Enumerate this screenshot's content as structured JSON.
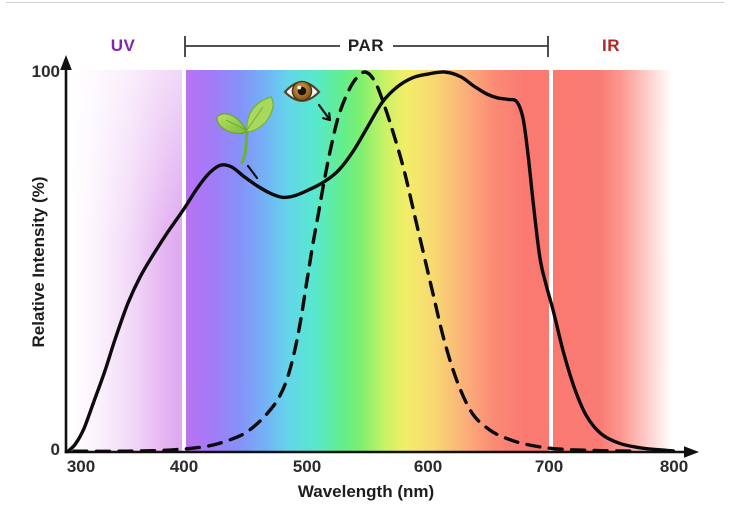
{
  "regions": {
    "uv": "UV",
    "par": "PAR",
    "ir": "IR"
  },
  "y_axis": {
    "title": "Relative Intensity (%)",
    "max": "100",
    "min": "0"
  },
  "x_axis": {
    "title": "Wavelength (nm)",
    "ticks": [
      "300",
      "400",
      "500",
      "600",
      "700",
      "800"
    ]
  },
  "chart_data": {
    "type": "line",
    "title": "",
    "xlabel": "Wavelength (nm)",
    "ylabel": "Relative Intensity (%)",
    "xlim": [
      300,
      800
    ],
    "ylim": [
      0,
      100
    ],
    "x_ticks": [
      300,
      400,
      500,
      600,
      700,
      800
    ],
    "y_ticks": [
      0,
      100
    ],
    "grid": false,
    "legend": "none (icons annotate curves: seedling = solid curve, eye = dashed curve)",
    "background": "visible-light spectrum gradient from UV (white/violet) through rainbow to IR (red/white)",
    "band_boundaries_nm": [
      400,
      700
    ],
    "regions": [
      {
        "label": "UV",
        "range_nm": [
          300,
          400
        ],
        "label_color": "#8326ad"
      },
      {
        "label": "PAR",
        "range_nm": [
          400,
          700
        ],
        "label_color": "#1f1f1f"
      },
      {
        "label": "IR",
        "range_nm": [
          700,
          800
        ],
        "label_color": "#b32424"
      }
    ],
    "series": [
      {
        "name": "plant-photosynthetic-response",
        "annotation_icon": "seedling",
        "line_style": "solid",
        "color": "#0b0b0b",
        "points": [
          [
            305,
            0
          ],
          [
            311,
            2
          ],
          [
            318,
            6
          ],
          [
            326,
            13
          ],
          [
            335,
            21
          ],
          [
            344,
            30
          ],
          [
            354,
            39
          ],
          [
            364,
            46
          ],
          [
            375,
            52
          ],
          [
            387,
            58
          ],
          [
            400,
            64
          ],
          [
            411,
            69.5
          ],
          [
            421,
            73.5
          ],
          [
            430,
            75.5
          ],
          [
            439,
            75
          ],
          [
            449,
            72.5
          ],
          [
            460,
            70
          ],
          [
            471,
            68
          ],
          [
            481,
            67
          ],
          [
            491,
            67.5
          ],
          [
            502,
            69
          ],
          [
            514,
            71
          ],
          [
            526,
            74
          ],
          [
            538,
            79
          ],
          [
            550,
            85.5
          ],
          [
            562,
            92
          ],
          [
            574,
            96
          ],
          [
            587,
            98.5
          ],
          [
            600,
            99.5
          ],
          [
            613,
            100
          ],
          [
            626,
            98.8
          ],
          [
            637,
            96.3
          ],
          [
            647,
            94.3
          ],
          [
            656,
            93.2
          ],
          [
            665,
            92.8
          ],
          [
            672,
            92.2
          ],
          [
            677,
            88
          ],
          [
            681,
            79
          ],
          [
            686,
            64
          ],
          [
            691,
            51
          ],
          [
            696,
            44
          ],
          [
            702,
            37
          ],
          [
            710,
            26.5
          ],
          [
            719,
            17
          ],
          [
            729,
            9.5
          ],
          [
            741,
            4.8
          ],
          [
            756,
            2.3
          ],
          [
            775,
            1
          ],
          [
            800,
            0.3
          ]
        ]
      },
      {
        "name": "human-eye-sensitivity",
        "annotation_icon": "eye",
        "line_style": "dashed",
        "color": "#0b0b0b",
        "points": [
          [
            310,
            0.2
          ],
          [
            350,
            0.2
          ],
          [
            380,
            0.4
          ],
          [
            400,
            0.8
          ],
          [
            415,
            1.3
          ],
          [
            428,
            2.2
          ],
          [
            440,
            3.5
          ],
          [
            450,
            5
          ],
          [
            460,
            7.5
          ],
          [
            469,
            10.5
          ],
          [
            477,
            14
          ],
          [
            484,
            19
          ],
          [
            490,
            26
          ],
          [
            495,
            34
          ],
          [
            500,
            44
          ],
          [
            505,
            54
          ],
          [
            510,
            63
          ],
          [
            515,
            72
          ],
          [
            520,
            80
          ],
          [
            526,
            88
          ],
          [
            533,
            94
          ],
          [
            540,
            98
          ],
          [
            548,
            100
          ],
          [
            556,
            97.5
          ],
          [
            564,
            91
          ],
          [
            572,
            83
          ],
          [
            580,
            74
          ],
          [
            588,
            63
          ],
          [
            596,
            52
          ],
          [
            604,
            41
          ],
          [
            613,
            29
          ],
          [
            624,
            18
          ],
          [
            636,
            10
          ],
          [
            650,
            5.8
          ],
          [
            662,
            3.8
          ],
          [
            676,
            2.3
          ],
          [
            692,
            1.3
          ],
          [
            710,
            0.7
          ],
          [
            735,
            0.4
          ],
          [
            768,
            0.2
          ]
        ]
      }
    ]
  }
}
